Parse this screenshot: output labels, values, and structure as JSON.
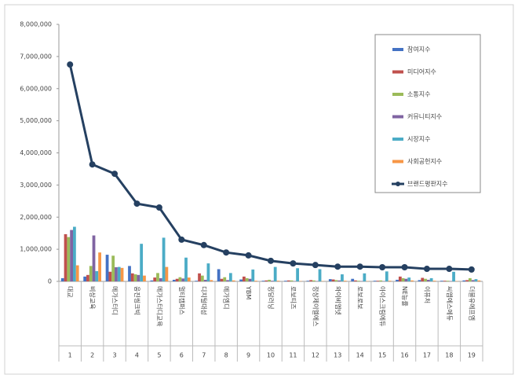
{
  "chart_data": {
    "type": "bar-line",
    "categories": [
      "대교",
      "비상교육",
      "메가스터디",
      "웅진씽크빅",
      "메가스터디교육",
      "멀티캠퍼스",
      "디지털대성",
      "메가엠디",
      "YBM",
      "청담러닝",
      "로보티즈",
      "정상제이엘에스",
      "와이비엠넷",
      "로보로보",
      "아이스크림에듀",
      "NE능률",
      "이퓨처",
      "씨엠에스에듀",
      "더블유에프엠"
    ],
    "ranks": [
      1,
      2,
      3,
      4,
      5,
      6,
      7,
      8,
      9,
      10,
      11,
      12,
      13,
      14,
      15,
      16,
      17,
      18,
      19
    ],
    "ylim": [
      0,
      8000000
    ],
    "yticks": [
      {
        "value": 0,
        "label": "0"
      },
      {
        "value": 1000000,
        "label": "1,000,000"
      },
      {
        "value": 2000000,
        "label": "2,000,000"
      },
      {
        "value": 3000000,
        "label": "3,000,000"
      },
      {
        "value": 4000000,
        "label": "4,000,000"
      },
      {
        "value": 5000000,
        "label": "5,000,000"
      },
      {
        "value": 6000000,
        "label": "6,000,000"
      },
      {
        "value": 7000000,
        "label": "7,000,000"
      },
      {
        "value": 8000000,
        "label": "8,000,000"
      }
    ],
    "series": [
      {
        "name": "참여지수",
        "type": "bar",
        "color": "#4472c4",
        "values": [
          100000,
          150000,
          830000,
          480000,
          30000,
          50000,
          20000,
          380000,
          60000,
          20000,
          20000,
          20000,
          70000,
          80000,
          20000,
          50000,
          40000,
          20000,
          30000
        ]
      },
      {
        "name": "미디어지수",
        "type": "bar",
        "color": "#c0504d",
        "values": [
          1470000,
          200000,
          300000,
          250000,
          120000,
          80000,
          250000,
          80000,
          150000,
          30000,
          30000,
          40000,
          60000,
          30000,
          20000,
          150000,
          110000,
          20000,
          40000
        ]
      },
      {
        "name": "소통지수",
        "type": "bar",
        "color": "#9bbb59",
        "values": [
          1380000,
          480000,
          800000,
          220000,
          260000,
          130000,
          180000,
          130000,
          100000,
          50000,
          30000,
          30000,
          40000,
          20000,
          30000,
          100000,
          80000,
          20000,
          100000
        ]
      },
      {
        "name": "커뮤니티지수",
        "type": "bar",
        "color": "#8064a2",
        "values": [
          1600000,
          1430000,
          440000,
          200000,
          100000,
          90000,
          50000,
          40000,
          80000,
          20000,
          10000,
          10000,
          30000,
          10000,
          10000,
          80000,
          50000,
          10000,
          40000
        ]
      },
      {
        "name": "시장지수",
        "type": "bar",
        "color": "#4bacc6",
        "values": [
          1700000,
          320000,
          450000,
          1170000,
          1360000,
          740000,
          560000,
          260000,
          370000,
          450000,
          410000,
          380000,
          220000,
          250000,
          310000,
          120000,
          100000,
          300000,
          70000
        ]
      },
      {
        "name": "사회공헌지수",
        "type": "bar",
        "color": "#f79646",
        "values": [
          500000,
          900000,
          420000,
          180000,
          450000,
          120000,
          40000,
          30000,
          20000,
          20000,
          10000,
          10000,
          20000,
          10000,
          20000,
          30000,
          20000,
          10000,
          30000
        ]
      },
      {
        "name": "브랜드평판지수",
        "type": "line",
        "color": "#254061",
        "values": [
          6750000,
          3640000,
          3350000,
          2420000,
          2300000,
          1300000,
          1130000,
          900000,
          810000,
          640000,
          560000,
          510000,
          460000,
          460000,
          440000,
          440000,
          390000,
          390000,
          370000
        ]
      }
    ]
  }
}
